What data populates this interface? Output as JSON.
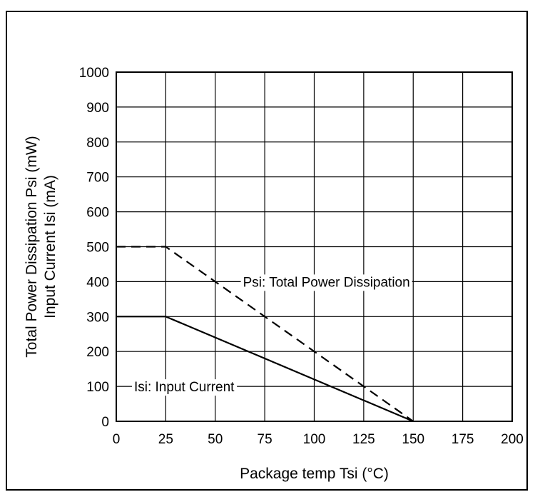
{
  "chart_data": {
    "type": "line",
    "xlabel": "Package temp Tsi (°C)",
    "ylabel_lines": [
      "Total Power Dissipation  Psi (mW)",
      "Input Current  Isi (mA)"
    ],
    "xlim": [
      0,
      200
    ],
    "ylim": [
      0,
      1000
    ],
    "x_ticks": [
      0,
      25,
      50,
      75,
      100,
      125,
      150,
      175,
      200
    ],
    "y_ticks": [
      0,
      100,
      200,
      300,
      400,
      500,
      600,
      700,
      800,
      900,
      1000
    ],
    "grid": true,
    "series": [
      {
        "name": "Psi: Total Power Dissipation",
        "style": "dashed",
        "color": "#000000",
        "x": [
          0,
          25,
          150
        ],
        "y": [
          500,
          500,
          0
        ]
      },
      {
        "name": "Isi: Input Current",
        "style": "solid",
        "color": "#000000",
        "x": [
          0,
          25,
          150
        ],
        "y": [
          300,
          300,
          0
        ]
      }
    ],
    "annotations": [
      {
        "text": "Psi: Total Power Dissipation",
        "x": 64,
        "y": 400
      },
      {
        "text": "Isi: Input Current",
        "x": 9,
        "y": 100
      }
    ]
  }
}
